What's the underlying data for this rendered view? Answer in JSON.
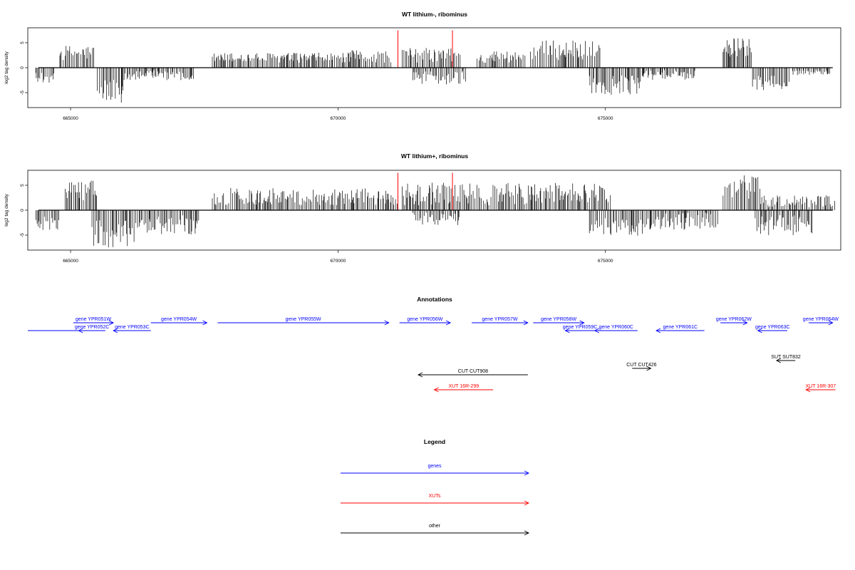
{
  "chart_data": [
    {
      "type": "bar",
      "title": "WT lithium-, ribominus",
      "ylabel": "log2 tag density",
      "xlim": [
        664200,
        679400
      ],
      "ylim": [
        -8,
        8
      ],
      "xticks": [
        665000,
        670000,
        675000
      ],
      "yticks": [
        -5,
        0,
        5
      ],
      "markers": [
        671120,
        672140
      ],
      "segments": [
        {
          "from": 664350,
          "to": 664700,
          "sign": -1,
          "min": 1,
          "max": 3
        },
        {
          "from": 664800,
          "to": 665450,
          "sign": 1,
          "min": 1.5,
          "max": 4.5
        },
        {
          "from": 665500,
          "to": 666000,
          "sign": -1,
          "min": 2,
          "max": 7
        },
        {
          "from": 666000,
          "to": 667300,
          "sign": -1,
          "min": 0.5,
          "max": 2.5
        },
        {
          "from": 667650,
          "to": 670200,
          "sign": 1,
          "min": 1,
          "max": 3
        },
        {
          "from": 670200,
          "to": 671000,
          "sign": 1,
          "min": 1,
          "max": 3.5
        },
        {
          "from": 671200,
          "to": 672300,
          "sign": 1,
          "min": 1,
          "max": 4
        },
        {
          "from": 671400,
          "to": 672400,
          "sign": -1,
          "min": 0.5,
          "max": 3.5
        },
        {
          "from": 672600,
          "to": 673500,
          "sign": 1,
          "min": 1,
          "max": 3.5
        },
        {
          "from": 673600,
          "to": 674900,
          "sign": 1,
          "min": 1.5,
          "max": 5.5
        },
        {
          "from": 674700,
          "to": 675700,
          "sign": -1,
          "min": 1.5,
          "max": 5.5
        },
        {
          "from": 675700,
          "to": 676700,
          "sign": -1,
          "min": 0.5,
          "max": 2.5
        },
        {
          "from": 677200,
          "to": 677750,
          "sign": 1,
          "min": 2,
          "max": 6
        },
        {
          "from": 677750,
          "to": 678450,
          "sign": -1,
          "min": 1.5,
          "max": 4.5
        },
        {
          "from": 678500,
          "to": 679200,
          "sign": -1,
          "min": 0.5,
          "max": 1.5
        }
      ]
    },
    {
      "type": "bar",
      "title": "WT lithium+, ribominus",
      "ylabel": "log2 tag density",
      "xlim": [
        664200,
        679400
      ],
      "ylim": [
        -8,
        8
      ],
      "xticks": [
        665000,
        670000,
        675000
      ],
      "yticks": [
        -5,
        0,
        5
      ],
      "markers": [
        671120,
        672140
      ],
      "segments": [
        {
          "from": 664350,
          "to": 664800,
          "sign": -1,
          "min": 1,
          "max": 4
        },
        {
          "from": 664900,
          "to": 665500,
          "sign": 1,
          "min": 2,
          "max": 6
        },
        {
          "from": 665400,
          "to": 666300,
          "sign": -1,
          "min": 2,
          "max": 7.5
        },
        {
          "from": 666300,
          "to": 667400,
          "sign": -1,
          "min": 1,
          "max": 5
        },
        {
          "from": 667650,
          "to": 670300,
          "sign": 1,
          "min": 1,
          "max": 4.5
        },
        {
          "from": 670300,
          "to": 671150,
          "sign": 1,
          "min": 1,
          "max": 4.5
        },
        {
          "from": 671200,
          "to": 673700,
          "sign": 1,
          "min": 1,
          "max": 5.5
        },
        {
          "from": 671400,
          "to": 672300,
          "sign": -1,
          "min": 0.5,
          "max": 3
        },
        {
          "from": 673700,
          "to": 675100,
          "sign": 1,
          "min": 1.5,
          "max": 5.5
        },
        {
          "from": 674700,
          "to": 675700,
          "sign": -1,
          "min": 1.5,
          "max": 5.5
        },
        {
          "from": 675700,
          "to": 677100,
          "sign": -1,
          "min": 0.5,
          "max": 4
        },
        {
          "from": 677200,
          "to": 677900,
          "sign": 1,
          "min": 2,
          "max": 7
        },
        {
          "from": 677900,
          "to": 679300,
          "sign": 1,
          "min": 0.5,
          "max": 3
        },
        {
          "from": 677800,
          "to": 678900,
          "sign": -1,
          "min": 1,
          "max": 5
        }
      ]
    }
  ],
  "annotations": {
    "title": "Annotations",
    "colors": {
      "gene": "#0000ff",
      "xut": "#ff0000",
      "other": "#000000"
    },
    "features": [
      {
        "label": "",
        "kind": "gene",
        "start": 664200,
        "end": 665350,
        "strand": "none",
        "row": 1
      },
      {
        "label": "gene YPR051W",
        "kind": "gene",
        "start": 665050,
        "end": 665800,
        "strand": "+",
        "row": 0
      },
      {
        "label": "gene YPR052C",
        "kind": "gene",
        "start": 665150,
        "end": 665650,
        "strand": "-",
        "row": 1
      },
      {
        "label": "gene YPR053C",
        "kind": "gene",
        "start": 665800,
        "end": 666500,
        "strand": "-",
        "row": 1
      },
      {
        "label": "gene YPR054W",
        "kind": "gene",
        "start": 666500,
        "end": 667550,
        "strand": "+",
        "row": 0
      },
      {
        "label": "gene YPR055W",
        "kind": "gene",
        "start": 667750,
        "end": 670950,
        "strand": "+",
        "row": 0
      },
      {
        "label": "gene YPR056W",
        "kind": "gene",
        "start": 671150,
        "end": 672100,
        "strand": "+",
        "row": 0
      },
      {
        "label": "gene YPR057W",
        "kind": "gene",
        "start": 672500,
        "end": 673550,
        "strand": "+",
        "row": 0
      },
      {
        "label": "gene YPR058W",
        "kind": "gene",
        "start": 673650,
        "end": 674600,
        "strand": "+",
        "row": 0
      },
      {
        "label": "gene YPR059C",
        "kind": "gene",
        "start": 674250,
        "end": 674800,
        "strand": "-",
        "row": 1
      },
      {
        "label": "gene YPR060C",
        "kind": "gene",
        "start": 674800,
        "end": 675600,
        "strand": "-",
        "row": 1
      },
      {
        "label": "gene YPR061C",
        "kind": "gene",
        "start": 675950,
        "end": 676850,
        "strand": "-",
        "row": 1
      },
      {
        "label": "gene YPR062W",
        "kind": "gene",
        "start": 677150,
        "end": 677650,
        "strand": "+",
        "row": 0
      },
      {
        "label": "gene YPR063C",
        "kind": "gene",
        "start": 677850,
        "end": 678400,
        "strand": "-",
        "row": 1
      },
      {
        "label": "gene YPR064W",
        "kind": "gene",
        "start": 678800,
        "end": 679250,
        "strand": "+",
        "row": 0
      },
      {
        "label": "SUT SUT832",
        "kind": "other",
        "start": 678200,
        "end": 678550,
        "strand": "-",
        "row": 2
      },
      {
        "label": "CUT CUT426",
        "kind": "other",
        "start": 675500,
        "end": 675850,
        "strand": "+",
        "row": 3
      },
      {
        "label": "CUT CUT908",
        "kind": "other",
        "start": 671500,
        "end": 673550,
        "strand": "-",
        "row": 4
      },
      {
        "label": "XUT 16R-299",
        "kind": "xut",
        "start": 671800,
        "end": 672900,
        "strand": "-",
        "row": 5
      },
      {
        "label": "XUT 16R-307",
        "kind": "xut",
        "start": 678750,
        "end": 679300,
        "strand": "-",
        "row": 5
      }
    ]
  },
  "legend": {
    "title": "Legend",
    "items": [
      {
        "label": "genes",
        "kind": "gene"
      },
      {
        "label": "XUTs",
        "kind": "xut"
      },
      {
        "label": "other",
        "kind": "other"
      }
    ]
  }
}
